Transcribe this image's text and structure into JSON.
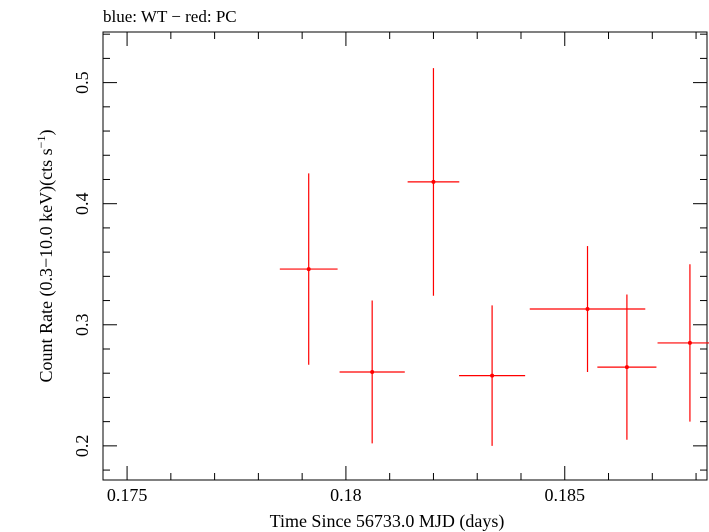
{
  "chart_data": {
    "type": "scatter",
    "title": "blue: WT − red: PC",
    "xlabel": "Time Since 56733.0 MJD (days)",
    "ylabel_main": "Count Rate (0.3−10.0 keV)(cts s",
    "ylabel_sup": "−1",
    "ylabel_end": ")",
    "xlim": [
      0.17445,
      0.18825
    ],
    "ylim": [
      0.1718,
      0.5418
    ],
    "x_ticks": [
      0.175,
      0.18,
      0.185
    ],
    "x_tick_labels": [
      "0.175",
      "0.18",
      "0.185"
    ],
    "y_ticks": [
      0.2,
      0.3,
      0.4,
      0.5
    ],
    "y_tick_labels": [
      "0.2",
      "0.3",
      "0.4",
      "0.5"
    ],
    "grid": false,
    "series": [
      {
        "color": "#ff0000",
        "points": [
          {
            "x": 0.18642,
            "xerr": 0.000675,
            "y": 0.265,
            "yerr": 0.06
          },
          {
            "x": 0.18786,
            "xerr": 0.00074,
            "y": 0.285,
            "yerr": 0.065
          },
          {
            "x": 0.17915,
            "xerr": 0.00066,
            "y": 0.346,
            "yerr": 0.079
          },
          {
            "x": 0.1806,
            "xerr": 0.000745,
            "y": 0.261,
            "yerr": 0.059
          },
          {
            "x": 0.182,
            "xerr": 0.00059,
            "y": 0.418,
            "yerr": 0.094
          },
          {
            "x": 0.18334,
            "xerr": 0.000755,
            "y": 0.258,
            "yerr": 0.058
          },
          {
            "x": 0.18552,
            "xerr": 0.00132,
            "y": 0.313,
            "yerr": 0.052
          }
        ]
      }
    ]
  }
}
